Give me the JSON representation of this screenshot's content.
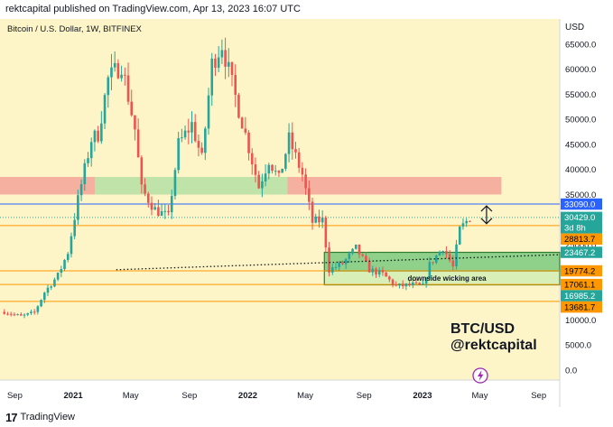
{
  "header": {
    "published": "rektcapital published on TradingView.com, Apr 13, 2023 16:07 UTC"
  },
  "footer": {
    "logo": "17",
    "brand": "TradingView"
  },
  "colors": {
    "background": "#fdf5c8",
    "up": "#26a69a",
    "down": "#ef5350",
    "resistance_zone": "#f5b0a0",
    "support_zone_green": "#bfe3a8",
    "range_box": "#8fd18a",
    "wick_area": "#d8f0b8",
    "blue_line": "#2962ff",
    "orange_line": "#ff9800"
  },
  "chart_data": {
    "type": "candlestick",
    "title": "Bitcoin / U.S. Dollar, 1W, BITFINEX",
    "axis_unit": "USD",
    "y_ticks": [
      0,
      5000,
      10000,
      15000,
      20000,
      25000,
      30000,
      35000,
      40000,
      45000,
      50000,
      55000,
      60000,
      65000
    ],
    "y_tick_labels": [
      "0.0",
      "5000.0",
      "10000.0",
      "15000.0",
      "20000.0",
      "25000.0",
      "30000.0",
      "35000.0",
      "40000.0",
      "45000.0",
      "50000.0",
      "55000.0",
      "60000.0",
      "65000.0"
    ],
    "ylim": [
      -2000,
      70000
    ],
    "x_range": [
      "2020-08-01",
      "2023-10-15"
    ],
    "x_ticks": [
      {
        "date": "2020-09-01",
        "label": "Sep"
      },
      {
        "date": "2021-01-01",
        "label": "2021"
      },
      {
        "date": "2021-05-01",
        "label": "May"
      },
      {
        "date": "2021-09-01",
        "label": "Sep"
      },
      {
        "date": "2022-01-01",
        "label": "2022"
      },
      {
        "date": "2022-05-01",
        "label": "May"
      },
      {
        "date": "2022-09-01",
        "label": "Sep"
      },
      {
        "date": "2023-01-01",
        "label": "2023"
      },
      {
        "date": "2023-05-01",
        "label": "May"
      },
      {
        "date": "2023-09-01",
        "label": "Sep"
      }
    ],
    "price_points": [
      [
        "2020-08-10",
        11600
      ],
      [
        "2020-09-14",
        10700
      ],
      [
        "2020-10-12",
        11500
      ],
      [
        "2020-11-02",
        15500
      ],
      [
        "2020-12-01",
        19000
      ],
      [
        "2020-12-21",
        23500
      ],
      [
        "2021-01-11",
        34000
      ],
      [
        "2021-02-08",
        46000
      ],
      [
        "2021-02-22",
        47000
      ],
      [
        "2021-03-15",
        58000
      ],
      [
        "2021-04-12",
        61000
      ],
      [
        "2021-05-10",
        48000
      ],
      [
        "2021-05-24",
        36000
      ],
      [
        "2021-06-21",
        32000
      ],
      [
        "2021-07-19",
        30500
      ],
      [
        "2021-08-09",
        45000
      ],
      [
        "2021-09-06",
        49000
      ],
      [
        "2021-09-27",
        42000
      ],
      [
        "2021-10-18",
        61000
      ],
      [
        "2021-11-08",
        65000
      ],
      [
        "2021-11-29",
        57000
      ],
      [
        "2021-12-27",
        47000
      ],
      [
        "2022-01-24",
        36500
      ],
      [
        "2022-02-14",
        42000
      ],
      [
        "2022-03-07",
        38000
      ],
      [
        "2022-03-28",
        46000
      ],
      [
        "2022-04-25",
        39000
      ],
      [
        "2022-05-16",
        29500
      ],
      [
        "2022-06-06",
        29900
      ],
      [
        "2022-06-20",
        20000
      ],
      [
        "2022-07-18",
        21200
      ],
      [
        "2022-08-15",
        24300
      ],
      [
        "2022-09-12",
        20000
      ],
      [
        "2022-10-10",
        19100
      ],
      [
        "2022-11-07",
        16700
      ],
      [
        "2022-12-12",
        17000
      ],
      [
        "2023-01-02",
        16700
      ],
      [
        "2023-01-16",
        21000
      ],
      [
        "2023-02-13",
        24500
      ],
      [
        "2023-03-06",
        20500
      ],
      [
        "2023-03-20",
        28000
      ],
      [
        "2023-04-10",
        30429
      ]
    ],
    "resistance_zone": {
      "y0": 35000,
      "y1": 38500,
      "x0": "2020-08-01",
      "x1": "2023-06-15"
    },
    "support_zone_green": {
      "y0": 35000,
      "y1": 38500,
      "x0": "2021-02-15",
      "x1": "2022-03-25"
    },
    "range_box": {
      "y0": 19774.2,
      "y1": 23467.2,
      "x0": "2022-06-10",
      "x1": "2023-10-15"
    },
    "wick_area": {
      "y0": 16985.2,
      "y1": 19774.2,
      "x0": "2022-06-10",
      "x1": "2023-10-15"
    },
    "wick_area_label": "downside wicking area",
    "diagonal_trendline": {
      "from": [
        "2021-04-01",
        20000
      ],
      "to": [
        "2023-10-15",
        23000
      ]
    },
    "horizontal_lines": [
      {
        "value": 33090.0,
        "color": "blue",
        "style": "solid"
      },
      {
        "value": 30429.0,
        "color": "green",
        "style": "dotted"
      },
      {
        "value": 28813.7,
        "color": "orange",
        "style": "solid"
      },
      {
        "value": 19774.2,
        "color": "orange",
        "style": "solid"
      },
      {
        "value": 17061.1,
        "color": "orange",
        "style": "solid"
      },
      {
        "value": 13681.7,
        "color": "orange",
        "style": "solid"
      }
    ],
    "price_labels": [
      {
        "value": 33090.0,
        "label": "33090.0",
        "bg": "#2962ff",
        "fg": "#ffffff"
      },
      {
        "value": 30429.0,
        "label": "30429.0",
        "sub": "3d 8h",
        "bg": "#26a69a",
        "fg": "#ffffff"
      },
      {
        "value": 28813.7,
        "label": "28813.7",
        "bg": "#ff9800",
        "fg": "#000000"
      },
      {
        "value": 23467.2,
        "label": "23467.2",
        "bg": "#26a69a",
        "fg": "#ffffff"
      },
      {
        "value": 19774.2,
        "label": "19774.2",
        "bg": "#ff9800",
        "fg": "#000000"
      },
      {
        "value": 17061.1,
        "label": "17061.1",
        "bg": "#ff9800",
        "fg": "#000000"
      },
      {
        "value": 16985.2,
        "label": "16985.2",
        "bg": "#26a69a",
        "fg": "#ffffff"
      },
      {
        "value": 13681.7,
        "label": "13681.7",
        "bg": "#ff9800",
        "fg": "#000000"
      }
    ],
    "double_arrow": {
      "date": "2023-05-15",
      "y_top": 33090.0,
      "y_bottom": 28813.7
    },
    "watermark_lines": [
      "BTC/USD",
      "@rektcapital"
    ],
    "grid": false,
    "legend": "none"
  }
}
